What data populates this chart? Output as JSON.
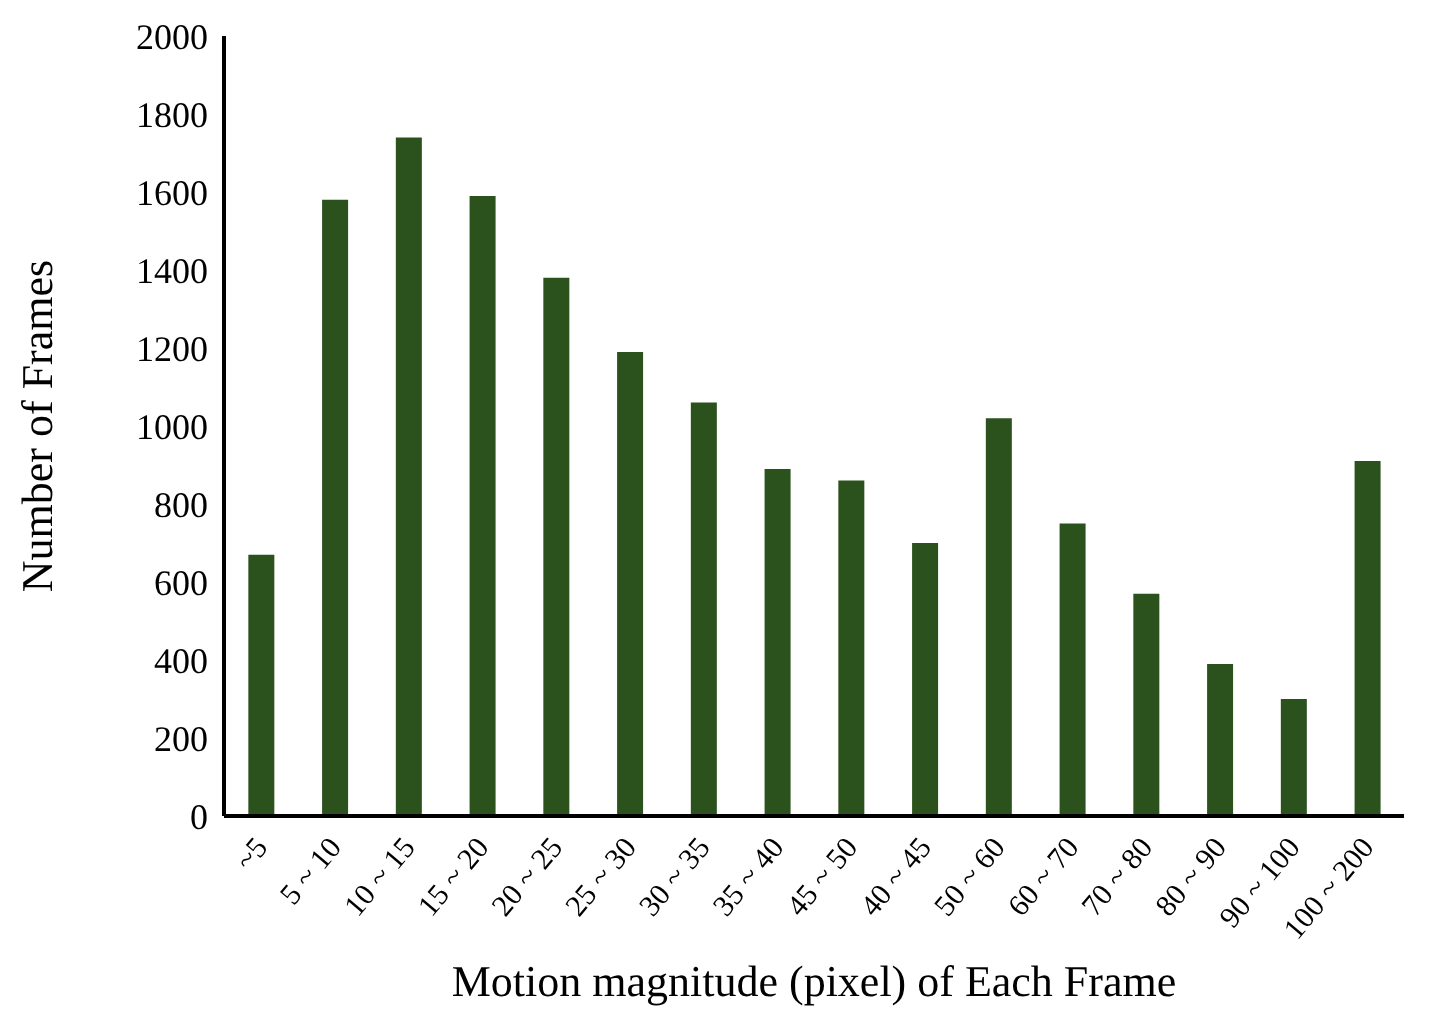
{
  "chart_data": {
    "type": "bar",
    "xlabel": "Motion magnitude (pixel) of Each Frame",
    "ylabel": "Number of Frames",
    "categories": [
      "~5",
      "5 ~ 10",
      "10 ~ 15",
      "15 ~ 20",
      "20 ~ 25",
      "25 ~ 30",
      "30 ~ 35",
      "35 ~ 40",
      "45 ~ 50",
      "40 ~ 45",
      "50 ~ 60",
      "60 ~ 70",
      "70 ~ 80",
      "80 ~ 90",
      "90 ~ 100",
      "100 ~ 200"
    ],
    "values": [
      670,
      1580,
      1740,
      1590,
      1380,
      1190,
      1060,
      890,
      860,
      700,
      1020,
      750,
      570,
      390,
      300,
      910
    ],
    "color": "#2b521d",
    "ylim": [
      0,
      2000
    ],
    "yticks": [
      0,
      200,
      400,
      600,
      800,
      1000,
      1200,
      1400,
      1600,
      1800,
      2000
    ],
    "grid": false,
    "legend": false
  }
}
